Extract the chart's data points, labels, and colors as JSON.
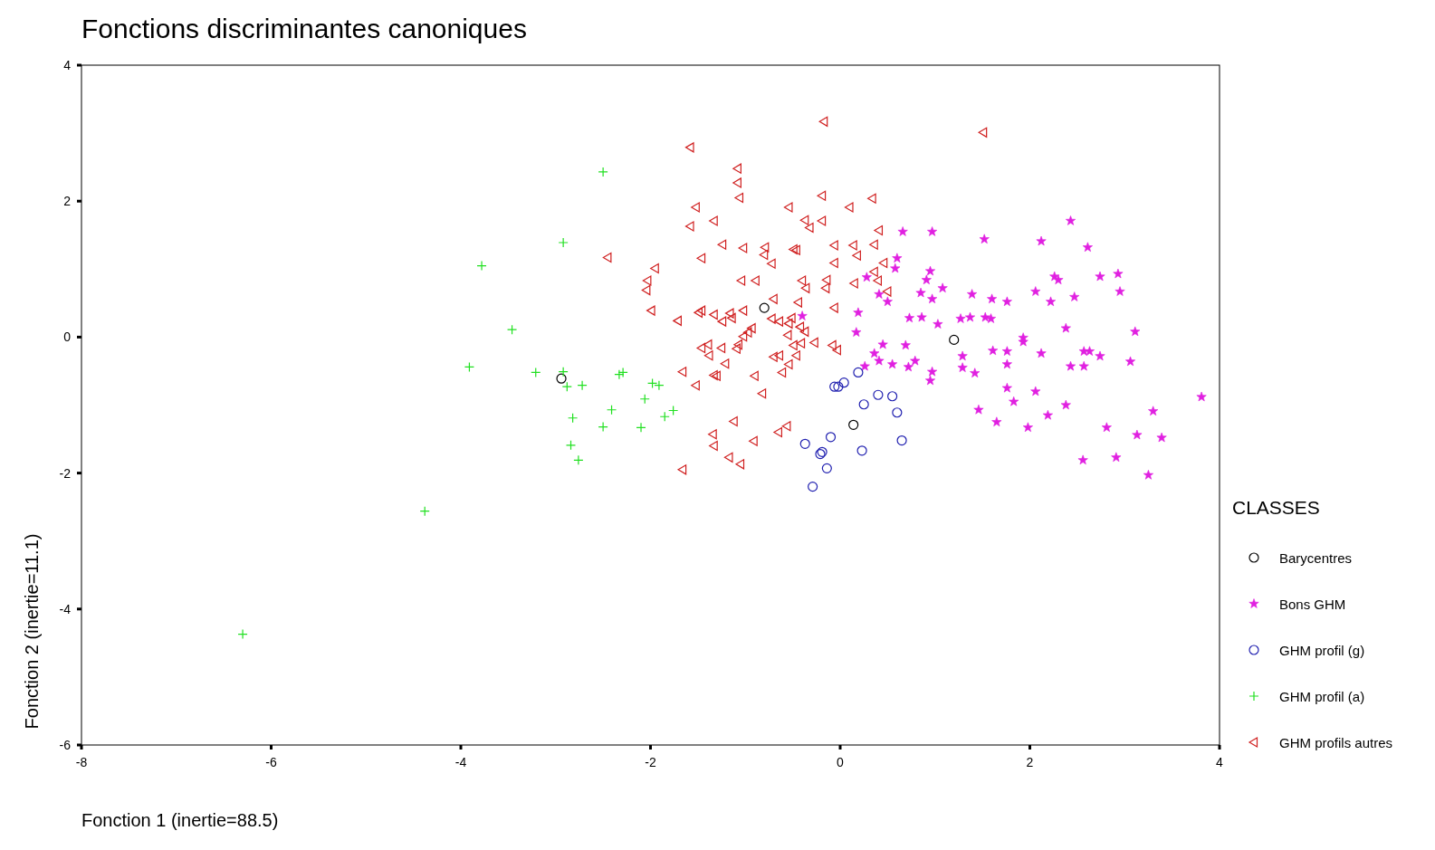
{
  "chart_data": {
    "type": "scatter",
    "title": "Fonctions discriminantes canoniques",
    "xlabel": "Fonction 1 (inertie=88.5)",
    "ylabel": "Fonction 2 (inertie=11.1)",
    "legend_title": "CLASSES",
    "legend": "right",
    "grid": false,
    "xlim": [
      -8,
      4
    ],
    "xticks": [
      -8,
      -6,
      -4,
      -2,
      0,
      2,
      4
    ],
    "ylim": [
      -6,
      4
    ],
    "yticks": [
      -6,
      -4,
      -2,
      0,
      2,
      4
    ],
    "series": [
      {
        "name": "Barycentres",
        "color": "#000000",
        "marker": "circle",
        "x": [
          -0.8,
          -2.94,
          0.14,
          1.2
        ],
        "values": [
          0.43,
          -0.61,
          -1.29,
          -0.04
        ]
      },
      {
        "name": "Bons GHM",
        "color": "#e020e0",
        "marker": "star",
        "x": [
          2.43,
          0.97,
          0.66,
          1.52,
          2.12,
          2.61,
          0.6,
          0.58,
          0.95,
          0.91,
          2.26,
          2.3,
          2.74,
          2.93,
          2.95,
          1.08,
          1.39,
          1.6,
          1.76,
          2.06,
          2.22,
          2.47,
          0.28,
          0.41,
          0.5,
          0.85,
          0.97,
          0.73,
          0.86,
          1.03,
          1.27,
          1.37,
          1.53,
          1.59,
          2.38,
          3.11,
          1.93,
          1.93,
          0.17,
          -0.4,
          0.69,
          1.61,
          1.76,
          2.12,
          2.63,
          2.74,
          3.06,
          1.29,
          1.29,
          1.76,
          2.43,
          2.57,
          0.36,
          0.41,
          0.26,
          0.55,
          0.79,
          0.97,
          0.95,
          1.42,
          0.72,
          1.76,
          2.06,
          1.83,
          2.38,
          2.19,
          1.46,
          1.65,
          1.98,
          2.81,
          3.3,
          3.13,
          3.39,
          3.81,
          2.56,
          2.91,
          3.25,
          2.57,
          0.45,
          0.19
        ],
        "values": [
          1.71,
          1.55,
          1.55,
          1.44,
          1.41,
          1.32,
          1.16,
          1.01,
          0.97,
          0.84,
          0.89,
          0.84,
          0.89,
          0.93,
          0.67,
          0.72,
          0.63,
          0.56,
          0.52,
          0.67,
          0.52,
          0.59,
          0.88,
          0.63,
          0.52,
          0.65,
          0.56,
          0.28,
          0.29,
          0.19,
          0.27,
          0.29,
          0.29,
          0.27,
          0.13,
          0.08,
          -0.01,
          -0.07,
          0.07,
          0.31,
          -0.12,
          -0.2,
          -0.21,
          -0.24,
          -0.21,
          -0.28,
          -0.36,
          -0.28,
          -0.45,
          -0.4,
          -0.43,
          -0.43,
          -0.24,
          -0.35,
          -0.43,
          -0.4,
          -0.35,
          -0.51,
          -0.64,
          -0.53,
          -0.44,
          -0.75,
          -0.8,
          -0.95,
          -1.0,
          -1.15,
          -1.07,
          -1.25,
          -1.33,
          -1.33,
          -1.09,
          -1.44,
          -1.48,
          -0.88,
          -1.81,
          -1.77,
          -2.03,
          -0.21,
          -0.11,
          0.36
        ]
      },
      {
        "name": "GHM profil (g)",
        "color": "#2020b0",
        "marker": "circle",
        "x": [
          0.19,
          -0.06,
          -0.02,
          0.04,
          0.4,
          0.55,
          0.25,
          0.6,
          -0.37,
          -0.19,
          -0.21,
          -0.1,
          0.23,
          0.65,
          -0.14,
          -0.29
        ],
        "values": [
          -0.52,
          -0.73,
          -0.73,
          -0.67,
          -0.85,
          -0.87,
          -0.99,
          -1.11,
          -1.57,
          -1.69,
          -1.72,
          -1.47,
          -1.67,
          -1.52,
          -1.93,
          -2.2
        ]
      },
      {
        "name": "GHM profil (a)",
        "color": "#20e020",
        "marker": "cross",
        "x": [
          -2.5,
          -2.92,
          -3.78,
          -3.46,
          -3.91,
          -3.21,
          -2.92,
          -2.88,
          -2.72,
          -2.33,
          -2.29,
          -1.98,
          -1.91,
          -2.06,
          -2.41,
          -2.82,
          -1.85,
          -1.76,
          -2.5,
          -2.1,
          -2.84,
          -2.76,
          -4.38,
          -6.3
        ],
        "values": [
          2.43,
          1.39,
          1.05,
          0.11,
          -0.44,
          -0.52,
          -0.51,
          -0.73,
          -0.71,
          -0.55,
          -0.52,
          -0.68,
          -0.71,
          -0.91,
          -1.07,
          -1.19,
          -1.17,
          -1.08,
          -1.32,
          -1.33,
          -1.59,
          -1.81,
          -2.56,
          -4.37
        ]
      },
      {
        "name": "GHM profils autres",
        "color": "#d02020",
        "marker": "triangle",
        "x": [
          -0.17,
          1.51,
          -1.58,
          -1.08,
          -1.08,
          -0.19,
          0.34,
          -1.06,
          -1.52,
          -0.54,
          0.1,
          -1.33,
          -0.37,
          -0.19,
          -0.32,
          -1.58,
          0.41,
          -1.24,
          -1.02,
          -0.79,
          -0.49,
          -0.46,
          -0.06,
          0.14,
          0.36,
          -2.45,
          -1.46,
          -0.8,
          -0.06,
          0.18,
          0.46,
          -0.72,
          -1.95,
          -0.4,
          -1.04,
          -0.89,
          -0.14,
          -2.03,
          -2.04,
          -0.36,
          -0.15,
          0.15,
          0.4,
          -0.7,
          -0.44,
          -0.06,
          -1.99,
          -1.46,
          -1.49,
          -1.33,
          -1.16,
          -1.02,
          -1.71,
          -1.24,
          -1.14,
          -0.72,
          -0.64,
          -0.54,
          -0.51,
          -0.93,
          -0.97,
          -1.02,
          -0.42,
          -0.37,
          -0.55,
          -1.46,
          -1.39,
          -1.25,
          -1.07,
          -1.09,
          -0.49,
          -0.41,
          -0.27,
          -0.08,
          -0.03,
          -1.38,
          -0.7,
          -0.64,
          -0.46,
          -0.54,
          -1.21,
          -1.66,
          -1.33,
          -1.3,
          -0.9,
          -0.61,
          -1.52,
          -0.82,
          -1.12,
          -1.34,
          -0.56,
          -0.65,
          -0.91,
          -1.33,
          -1.17,
          -1.05,
          -1.66,
          0.5,
          0.36
        ],
        "values": [
          3.17,
          3.01,
          2.79,
          2.48,
          2.27,
          2.08,
          2.04,
          2.05,
          1.91,
          1.91,
          1.91,
          1.71,
          1.72,
          1.71,
          1.61,
          1.63,
          1.57,
          1.36,
          1.31,
          1.32,
          1.29,
          1.28,
          1.35,
          1.35,
          1.36,
          1.17,
          1.16,
          1.21,
          1.09,
          1.2,
          1.09,
          1.08,
          1.01,
          0.83,
          0.83,
          0.83,
          0.84,
          0.83,
          0.69,
          0.72,
          0.72,
          0.79,
          0.83,
          0.56,
          0.51,
          0.43,
          0.39,
          0.39,
          0.36,
          0.33,
          0.35,
          0.39,
          0.24,
          0.23,
          0.28,
          0.27,
          0.23,
          0.2,
          0.28,
          0.13,
          0.07,
          0.01,
          0.15,
          0.08,
          0.03,
          -0.16,
          -0.11,
          -0.16,
          -0.11,
          -0.17,
          -0.12,
          -0.09,
          -0.08,
          -0.12,
          -0.19,
          -0.27,
          -0.29,
          -0.27,
          -0.27,
          -0.4,
          -0.39,
          -0.51,
          -0.56,
          -0.57,
          -0.57,
          -0.52,
          -0.71,
          -0.83,
          -1.24,
          -1.43,
          -1.31,
          -1.4,
          -1.53,
          -1.6,
          -1.77,
          -1.87,
          -1.95,
          0.67,
          0.96
        ]
      }
    ]
  }
}
